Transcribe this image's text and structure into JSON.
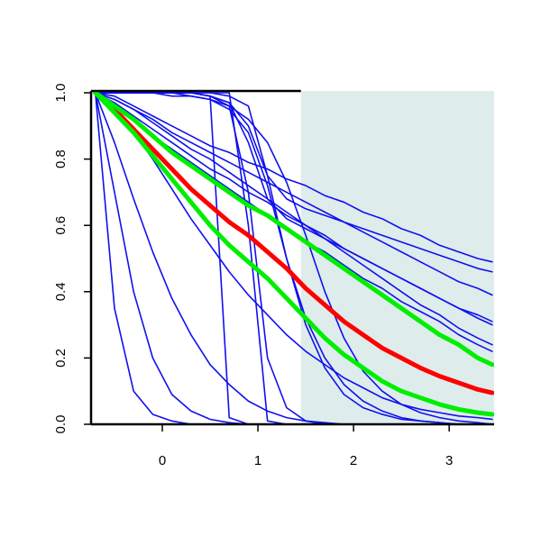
{
  "chart_data": {
    "type": "line",
    "x": [
      -0.7,
      -0.5,
      -0.3,
      -0.1,
      0.1,
      0.3,
      0.5,
      0.7,
      0.9,
      1.1,
      1.3,
      1.5,
      1.7,
      1.9,
      2.1,
      2.3,
      2.5,
      2.7,
      2.9,
      3.1,
      3.3,
      3.45
    ],
    "xlim": [
      -0.745,
      3.47
    ],
    "ylim": [
      0,
      1
    ],
    "xticks": [
      0,
      1,
      2,
      3
    ],
    "yticks": [
      {
        "value": 0,
        "label": "0.0"
      },
      {
        "value": 0.2,
        "label": "0.2"
      },
      {
        "value": 0.4,
        "label": "0.4"
      },
      {
        "value": 0.6,
        "label": "0.6"
      },
      {
        "value": 0.8,
        "label": "0.8"
      },
      {
        "value": 1,
        "label": "1.0"
      }
    ],
    "shade_from": 1.45,
    "shade_color": "#deecec",
    "series": [
      {
        "color": "#1010ee",
        "values": [
          1.0,
          0.99,
          0.96,
          0.93,
          0.9,
          0.87,
          0.84,
          0.82,
          0.79,
          0.77,
          0.74,
          0.72,
          0.69,
          0.67,
          0.64,
          0.62,
          0.59,
          0.57,
          0.54,
          0.52,
          0.5,
          0.49
        ]
      },
      {
        "color": "#1010ee",
        "values": [
          1.0,
          0.98,
          0.95,
          0.92,
          0.88,
          0.85,
          0.82,
          0.79,
          0.76,
          0.73,
          0.7,
          0.67,
          0.64,
          0.61,
          0.58,
          0.55,
          0.52,
          0.49,
          0.46,
          0.43,
          0.41,
          0.39
        ]
      },
      {
        "color": "#1010ee",
        "values": [
          1.0,
          0.97,
          0.93,
          0.89,
          0.85,
          0.81,
          0.77,
          0.74,
          0.7,
          0.67,
          0.63,
          0.6,
          0.57,
          0.53,
          0.5,
          0.47,
          0.44,
          0.41,
          0.38,
          0.35,
          0.32,
          0.3
        ]
      },
      {
        "color": "#1010ee",
        "values": [
          1,
          0.96,
          0.92,
          0.87,
          0.83,
          0.79,
          0.75,
          0.71,
          0.67,
          0.63,
          0.59,
          0.55,
          0.52,
          0.48,
          0.44,
          0.41,
          0.37,
          0.34,
          0.31,
          0.27,
          0.24,
          0.22
        ]
      },
      {
        "color": "#1010ee",
        "values": [
          1,
          1,
          1,
          1,
          1,
          1,
          0.99,
          0.97,
          0.85,
          0.68,
          0.62,
          0.59,
          0.56,
          0.53,
          0.5,
          0.47,
          0.44,
          0.41,
          0.38,
          0.35,
          0.33,
          0.31
        ]
      },
      {
        "color": "#1010ee",
        "values": [
          1,
          1,
          1,
          1,
          1,
          1,
          1,
          0.99,
          0.96,
          0.75,
          0.68,
          0.65,
          0.63,
          0.61,
          0.59,
          0.57,
          0.55,
          0.53,
          0.51,
          0.49,
          0.47,
          0.46
        ]
      },
      {
        "color": "#1010ee",
        "values": [
          1,
          1,
          1,
          1,
          1,
          1,
          0.99,
          0.97,
          0.9,
          0.75,
          0.5,
          0.3,
          0.17,
          0.09,
          0.05,
          0.03,
          0.015,
          0.01,
          0.005,
          0,
          0,
          0
        ]
      },
      {
        "color": "#1010ee",
        "values": [
          1,
          1,
          1,
          1,
          0.99,
          0.99,
          0.98,
          0.96,
          0.92,
          0.85,
          0.73,
          0.57,
          0.4,
          0.26,
          0.16,
          0.1,
          0.06,
          0.035,
          0.02,
          0.01,
          0.005,
          0
        ]
      },
      {
        "color": "#1010ee",
        "values": [
          1,
          1,
          1,
          1,
          1,
          1,
          0.99,
          0.02,
          0,
          0,
          0,
          0,
          0,
          0,
          0,
          0,
          0,
          0,
          0,
          0,
          0,
          0
        ]
      },
      {
        "color": "#1010ee",
        "values": [
          1,
          1,
          1,
          1,
          1,
          1,
          1,
          1,
          0.6,
          0.01,
          0,
          0,
          0,
          0,
          0,
          0,
          0,
          0,
          0,
          0,
          0,
          0
        ]
      },
      {
        "color": "#1010ee",
        "values": [
          1,
          1,
          1,
          1,
          1,
          1,
          0.99,
          0.96,
          0.7,
          0.2,
          0.05,
          0.01,
          0,
          0,
          0,
          0,
          0,
          0,
          0,
          0,
          0,
          0
        ]
      },
      {
        "color": "#1010ee",
        "values": [
          1,
          0.7,
          0.4,
          0.2,
          0.09,
          0.04,
          0.015,
          0.005,
          0,
          0,
          0,
          0,
          0,
          0,
          0,
          0,
          0,
          0,
          0,
          0,
          0,
          0
        ]
      },
      {
        "color": "#1010ee",
        "values": [
          1,
          0.85,
          0.68,
          0.52,
          0.38,
          0.27,
          0.18,
          0.12,
          0.07,
          0.04,
          0.02,
          0.01,
          0.005,
          0,
          0,
          0,
          0,
          0,
          0,
          0,
          0,
          0
        ]
      },
      {
        "color": "#1010ee",
        "values": [
          1,
          0.35,
          0.1,
          0.03,
          0.01,
          0,
          0,
          0,
          0,
          0,
          0,
          0,
          0,
          0,
          0,
          0,
          0,
          0,
          0,
          0,
          0,
          0
        ]
      },
      {
        "color": "#1010ee",
        "values": [
          1,
          0.95,
          0.88,
          0.8,
          0.71,
          0.62,
          0.54,
          0.46,
          0.39,
          0.33,
          0.27,
          0.22,
          0.18,
          0.14,
          0.11,
          0.08,
          0.06,
          0.045,
          0.035,
          0.025,
          0.02,
          0.015
        ]
      },
      {
        "color": "#1010ee",
        "values": [
          1,
          1,
          1,
          1,
          1,
          0.99,
          0.98,
          0.95,
          0.88,
          0.72,
          0.5,
          0.32,
          0.2,
          0.12,
          0.07,
          0.04,
          0.02,
          0.01,
          0.005,
          0,
          0,
          0
        ]
      },
      {
        "color": "#1010ee",
        "values": [
          1,
          0.98,
          0.95,
          0.91,
          0.87,
          0.83,
          0.8,
          0.76,
          0.72,
          0.68,
          0.64,
          0.6,
          0.56,
          0.52,
          0.48,
          0.44,
          0.4,
          0.36,
          0.33,
          0.29,
          0.26,
          0.24
        ]
      },
      {
        "color": "#ff0000",
        "values": [
          1.0,
          0.95,
          0.89,
          0.83,
          0.77,
          0.71,
          0.66,
          0.61,
          0.57,
          0.52,
          0.47,
          0.41,
          0.36,
          0.31,
          0.27,
          0.23,
          0.2,
          0.17,
          0.145,
          0.125,
          0.105,
          0.095
        ]
      },
      {
        "color": "#00ee00",
        "values": [
          1.0,
          0.96,
          0.92,
          0.87,
          0.82,
          0.78,
          0.74,
          0.7,
          0.66,
          0.63,
          0.59,
          0.55,
          0.51,
          0.47,
          0.43,
          0.39,
          0.35,
          0.31,
          0.27,
          0.24,
          0.2,
          0.18
        ]
      },
      {
        "color": "#00ee00",
        "values": [
          1.0,
          0.94,
          0.88,
          0.81,
          0.74,
          0.67,
          0.6,
          0.54,
          0.49,
          0.44,
          0.38,
          0.32,
          0.26,
          0.21,
          0.17,
          0.13,
          0.1,
          0.08,
          0.06,
          0.045,
          0.035,
          0.03
        ]
      }
    ]
  }
}
